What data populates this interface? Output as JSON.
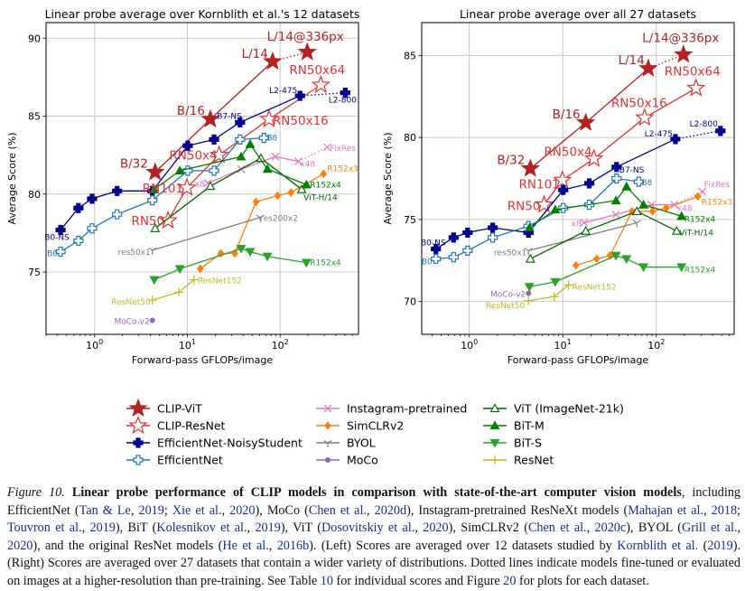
{
  "series_styles": [
    {
      "name": "CLIP-ViT",
      "color": "#b22222",
      "marker": "star",
      "filled": true
    },
    {
      "name": "CLIP-ResNet",
      "color": "#e03434",
      "marker": "star",
      "filled": false
    },
    {
      "name": "EfficientNet-NoisyStudent",
      "color": "#00008b",
      "marker": "plus-thick",
      "filled": true
    },
    {
      "name": "EfficientNet",
      "color": "#1f77b4",
      "marker": "plus-thick",
      "filled": false
    },
    {
      "name": "Instagram-pretrained",
      "color": "#e377c2",
      "marker": "x",
      "filled": false
    },
    {
      "name": "SimCLRv2",
      "color": "#ff7f0e",
      "marker": "diamond",
      "filled": true
    },
    {
      "name": "BYOL",
      "color": "#7f7f7f",
      "marker": "tri-down-lines",
      "filled": false
    },
    {
      "name": "MoCo",
      "color": "#9467bd",
      "marker": "circle",
      "filled": true
    },
    {
      "name": "ViT (ImageNet-21k)",
      "color": "#006400",
      "marker": "triangle-up",
      "filled": false
    },
    {
      "name": "BiT-M",
      "color": "#008000",
      "marker": "triangle-up",
      "filled": true
    },
    {
      "name": "BiT-S",
      "color": "#2ca02c",
      "marker": "triangle-down",
      "filled": true
    },
    {
      "name": "ResNet",
      "color": "#bcbd22",
      "marker": "plus-thin",
      "filled": false
    }
  ],
  "legend": {
    "placement": "bottom-center",
    "columns": 3
  },
  "chart_data": [
    {
      "type": "line",
      "title": "Linear probe average over Kornblith et al.'s 12 datasets",
      "xlabel": "Forward-pass GFLOPs/image",
      "ylabel": "Average Score (%)",
      "xscale": "log",
      "xlim": [
        0.3,
        700
      ],
      "ylim": [
        71,
        91
      ],
      "xticks": [
        1,
        10,
        100
      ],
      "yticks": [
        75,
        80,
        85,
        90
      ],
      "grid": true,
      "series": [
        {
          "name": "CLIP-ViT",
          "x": [
            4.5,
            17.7,
            83,
            196
          ],
          "y": [
            81.4,
            84.8,
            88.5,
            89.1
          ],
          "dotted_last_segment": true
        },
        {
          "name": "CLIP-ResNet",
          "x": [
            6.2,
            9.9,
            22,
            76,
            275
          ],
          "y": [
            78.3,
            80.4,
            82.5,
            84.8,
            87.0
          ]
        },
        {
          "name": "EfficientNet-NoisyStudent",
          "x": [
            0.43,
            0.67,
            0.94,
            1.75,
            4.2,
            10.1,
            19.4,
            37,
            164,
            504
          ],
          "y": [
            77.7,
            79.1,
            79.7,
            80.2,
            80.2,
            83.1,
            83.5,
            84.6,
            86.3,
            86.5
          ],
          "dotted_last_segment": true
        },
        {
          "name": "EfficientNet",
          "x": [
            0.43,
            0.67,
            0.94,
            1.75,
            4.2,
            10.1,
            19.4,
            37,
            67
          ],
          "y": [
            76.3,
            77.0,
            77.8,
            78.7,
            79.6,
            81.5,
            81.5,
            83.5,
            83.6
          ]
        },
        {
          "name": "Instagram-pretrained",
          "x": [
            16.6,
            38,
            89,
            157,
            323
          ],
          "y": [
            80.7,
            81.6,
            82.4,
            82.1,
            83.0
          ],
          "dotted_last_segment": true
        },
        {
          "name": "SimCLRv2",
          "x": [
            13.8,
            23,
            32.5,
            55,
            94,
            131,
            294
          ],
          "y": [
            75.2,
            76.2,
            76.2,
            79.5,
            79.9,
            80.1,
            81.3
          ]
        },
        {
          "name": "BYOL",
          "x": [
            4.2,
            61
          ],
          "y": [
            76.4,
            78.5
          ]
        },
        {
          "name": "MoCo",
          "x": [
            4.2
          ],
          "y": [
            71.9
          ]
        },
        {
          "name": "ViT (ImageNet-21k)",
          "x": [
            4.5,
            17.7,
            62,
            171
          ],
          "y": [
            77.8,
            80.5,
            82.3,
            80.3
          ]
        },
        {
          "name": "BiT-M",
          "x": [
            4.4,
            8.3,
            38,
            47.5,
            73,
            192
          ],
          "y": [
            80.3,
            81.5,
            82.4,
            83.2,
            81.6,
            80.6
          ]
        },
        {
          "name": "BiT-S",
          "x": [
            4.4,
            8.3,
            38,
            47.5,
            73,
            192
          ],
          "y": [
            74.5,
            75.2,
            76.5,
            76.3,
            76.0,
            75.6
          ]
        },
        {
          "name": "ResNet",
          "x": [
            4.2,
            8.1,
            11.8
          ],
          "y": [
            73.2,
            73.7,
            74.5
          ]
        }
      ],
      "labels": [
        {
          "text": "B/32",
          "series": 0,
          "point": 0
        },
        {
          "text": "B/16",
          "series": 0,
          "point": 1
        },
        {
          "text": "L/14",
          "series": 0,
          "point": 2
        },
        {
          "text": "L/14@336px",
          "series": 0,
          "point": 3
        },
        {
          "text": "RN50",
          "series": 1,
          "point": 0
        },
        {
          "text": "RN101",
          "series": 1,
          "point": 1
        },
        {
          "text": "RN50x4",
          "series": 1,
          "point": 2
        },
        {
          "text": "RN50x16",
          "series": 1,
          "point": 3
        },
        {
          "text": "RN50x64",
          "series": 1,
          "point": 4
        },
        {
          "text": "B0-NS",
          "series": 2,
          "point": 0
        },
        {
          "text": "B7-NS",
          "series": 2,
          "point": 7
        },
        {
          "text": "L2-475",
          "series": 2,
          "point": 8
        },
        {
          "text": "L2-800",
          "series": 2,
          "point": 9
        },
        {
          "text": "B0",
          "series": 3,
          "point": 0
        },
        {
          "text": "B8",
          "series": 3,
          "point": 8
        },
        {
          "text": "x8",
          "series": 4,
          "point": 0
        },
        {
          "text": "x48",
          "series": 4,
          "point": 3
        },
        {
          "text": "FixRes",
          "series": 4,
          "point": 4
        },
        {
          "text": "R152x3",
          "series": 5,
          "point": 6
        },
        {
          "text": "res50x1",
          "series": 6,
          "point": 0
        },
        {
          "text": "res200x2",
          "series": 6,
          "point": 1
        },
        {
          "text": "MoCo-v2",
          "series": 7,
          "point": 0
        },
        {
          "text": "ResNet50",
          "series": 11,
          "point": 0
        },
        {
          "text": "ResNet152",
          "series": 11,
          "point": 2
        },
        {
          "text": "ViT-H/14",
          "series": 8,
          "point": 3
        },
        {
          "text": "R152x4",
          "series": 9,
          "point": 5
        },
        {
          "text": "R152x4",
          "series": 10,
          "point": 5
        }
      ]
    },
    {
      "type": "line",
      "title": "Linear probe average over all 27 datasets",
      "xlabel": "Forward-pass GFLOPs/image",
      "ylabel": "Average Score (%)",
      "xscale": "log",
      "xlim": [
        0.31,
        680
      ],
      "ylim": [
        68,
        87
      ],
      "xticks": [
        1,
        10,
        100
      ],
      "yticks": [
        70,
        75,
        80,
        85
      ],
      "grid": true,
      "series": [
        {
          "name": "CLIP-ViT",
          "x": [
            4.5,
            17.6,
            82,
            195
          ],
          "y": [
            78.1,
            80.9,
            84.2,
            85.05
          ],
          "dotted_last_segment": true
        },
        {
          "name": "CLIP-ResNet",
          "x": [
            6.3,
            9.9,
            21.5,
            75,
            266
          ],
          "y": [
            75.9,
            77.4,
            78.7,
            81.2,
            83.0
          ]
        },
        {
          "name": "EfficientNet-NoisyStudent",
          "x": [
            0.44,
            0.68,
            0.96,
            1.78,
            4.3,
            10.1,
            19.2,
            37.6,
            160,
            485
          ],
          "y": [
            73.2,
            73.9,
            74.2,
            74.5,
            74.2,
            76.8,
            77.2,
            78.2,
            79.9,
            80.4
          ],
          "dotted_last_segment": true
        },
        {
          "name": "EfficientNet",
          "x": [
            0.44,
            0.68,
            0.96,
            1.78,
            4.3,
            10.1,
            19.2,
            37.6,
            65
          ],
          "y": [
            72.6,
            72.7,
            73.1,
            73.9,
            74.6,
            75.7,
            75.9,
            77.5,
            77.3
          ]
        },
        {
          "name": "Instagram-pretrained",
          "x": [
            16.9,
            37,
            89,
            156,
            310
          ],
          "y": [
            74.8,
            75.3,
            75.9,
            75.9,
            76.7
          ],
          "dotted_last_segment": true
        },
        {
          "name": "SimCLRv2",
          "x": [
            13.8,
            23,
            32,
            55,
            91,
            128,
            278
          ],
          "y": [
            72.2,
            72.6,
            72.8,
            75.5,
            75.5,
            75.7,
            76.4
          ]
        },
        {
          "name": "BYOL",
          "x": [
            4.3,
            62
          ],
          "y": [
            73.1,
            74.8
          ]
        },
        {
          "name": "MoCo",
          "x": [
            4.3
          ],
          "y": [
            70.5
          ]
        },
        {
          "name": "ViT (ImageNet-21k)",
          "x": [
            4.5,
            17.6,
            62,
            165
          ],
          "y": [
            72.6,
            74.3,
            75.5,
            74.3
          ]
        },
        {
          "name": "BiT-M",
          "x": [
            4.4,
            8.3,
            37,
            48,
            73,
            186
          ],
          "y": [
            74.5,
            75.6,
            76.15,
            77.0,
            75.9,
            75.2
          ]
        },
        {
          "name": "BiT-S",
          "x": [
            4.4,
            8.3,
            37,
            48,
            73,
            186
          ],
          "y": [
            70.9,
            71.2,
            72.8,
            72.6,
            72.1,
            72.1
          ]
        },
        {
          "name": "ResNet",
          "x": [
            4.3,
            8.1,
            11.5
          ],
          "y": [
            70.05,
            70.3,
            71.0
          ]
        }
      ],
      "labels": [
        {
          "text": "B/32",
          "series": 0,
          "point": 0
        },
        {
          "text": "B/16",
          "series": 0,
          "point": 1
        },
        {
          "text": "L/14",
          "series": 0,
          "point": 2
        },
        {
          "text": "L/14@336px",
          "series": 0,
          "point": 3
        },
        {
          "text": "RN50",
          "series": 1,
          "point": 0
        },
        {
          "text": "RN101",
          "series": 1,
          "point": 1
        },
        {
          "text": "RN50x4",
          "series": 1,
          "point": 2
        },
        {
          "text": "RN50x16",
          "series": 1,
          "point": 3
        },
        {
          "text": "RN50x64",
          "series": 1,
          "point": 4
        },
        {
          "text": "B0-NS",
          "series": 2,
          "point": 0
        },
        {
          "text": "B7-NS",
          "series": 2,
          "point": 7
        },
        {
          "text": "L2-475",
          "series": 2,
          "point": 8
        },
        {
          "text": "L2-800",
          "series": 2,
          "point": 9
        },
        {
          "text": "B0",
          "series": 3,
          "point": 0
        },
        {
          "text": "B8",
          "series": 3,
          "point": 8
        },
        {
          "text": "x8",
          "series": 4,
          "point": 0
        },
        {
          "text": "x48",
          "series": 4,
          "point": 3
        },
        {
          "text": "FixRes",
          "series": 4,
          "point": 4
        },
        {
          "text": "R152x3",
          "series": 5,
          "point": 6
        },
        {
          "text": "res50x1",
          "series": 6,
          "point": 0
        },
        {
          "text": "MoCo-v2",
          "series": 7,
          "point": 0
        },
        {
          "text": "ResNet50",
          "series": 11,
          "point": 0
        },
        {
          "text": "ResNet152",
          "series": 11,
          "point": 2
        },
        {
          "text": "ViT-H/14",
          "series": 8,
          "point": 3
        },
        {
          "text": "R152x4",
          "series": 9,
          "point": 5
        },
        {
          "text": "R152x4",
          "series": 10,
          "point": 5
        }
      ]
    }
  ],
  "caption": {
    "segments": [
      {
        "text": "Figure 10. ",
        "style": "italic"
      },
      {
        "text": "Linear probe performance of CLIP models in comparison with state-of-the-art computer vision models",
        "style": "bold"
      },
      {
        "text": ", including EfficientNet (",
        "style": "plain"
      },
      {
        "text": "Tan & Le",
        "style": "link"
      },
      {
        "text": ", ",
        "style": "plain"
      },
      {
        "text": "2019",
        "style": "link"
      },
      {
        "text": "; ",
        "style": "plain"
      },
      {
        "text": "Xie et al.",
        "style": "link"
      },
      {
        "text": ", ",
        "style": "plain"
      },
      {
        "text": "2020",
        "style": "link"
      },
      {
        "text": "), MoCo (",
        "style": "plain"
      },
      {
        "text": "Chen et al.",
        "style": "link"
      },
      {
        "text": ", ",
        "style": "plain"
      },
      {
        "text": "2020d",
        "style": "link"
      },
      {
        "text": "), Instagram-pretrained ResNeXt models (",
        "style": "plain"
      },
      {
        "text": "Mahajan et al.",
        "style": "link"
      },
      {
        "text": ", ",
        "style": "plain"
      },
      {
        "text": "2018",
        "style": "link"
      },
      {
        "text": "; ",
        "style": "plain"
      },
      {
        "text": "Touvron et al.",
        "style": "link"
      },
      {
        "text": ", ",
        "style": "plain"
      },
      {
        "text": "2019",
        "style": "link"
      },
      {
        "text": "), BiT (",
        "style": "plain"
      },
      {
        "text": "Kolesnikov et al.",
        "style": "link"
      },
      {
        "text": ", ",
        "style": "plain"
      },
      {
        "text": "2019",
        "style": "link"
      },
      {
        "text": "), ViT (",
        "style": "plain"
      },
      {
        "text": "Dosovitskiy et al.",
        "style": "link"
      },
      {
        "text": ", ",
        "style": "plain"
      },
      {
        "text": "2020",
        "style": "link"
      },
      {
        "text": "), SimCLRv2 (",
        "style": "plain"
      },
      {
        "text": "Chen et al.",
        "style": "link"
      },
      {
        "text": ", ",
        "style": "plain"
      },
      {
        "text": "2020c",
        "style": "link"
      },
      {
        "text": "), BYOL (",
        "style": "plain"
      },
      {
        "text": "Grill et al.",
        "style": "link"
      },
      {
        "text": ", ",
        "style": "plain"
      },
      {
        "text": "2020",
        "style": "link"
      },
      {
        "text": "), and the original ResNet models (",
        "style": "plain"
      },
      {
        "text": "He et al.",
        "style": "link"
      },
      {
        "text": ", ",
        "style": "plain"
      },
      {
        "text": "2016b",
        "style": "link"
      },
      {
        "text": "). (Left) Scores are averaged over 12 datasets studied by ",
        "style": "plain"
      },
      {
        "text": "Kornblith et al.",
        "style": "link"
      },
      {
        "text": " (",
        "style": "plain"
      },
      {
        "text": "2019",
        "style": "link"
      },
      {
        "text": "). (Right) Scores are averaged over 27 datasets that contain a wider variety of distributions.  Dotted lines indicate models fine-tuned or evaluated on images at a higher-resolution than pre-training. See Table ",
        "style": "plain"
      },
      {
        "text": "10",
        "style": "link"
      },
      {
        "text": " for individual scores and Figure ",
        "style": "plain"
      },
      {
        "text": "20",
        "style": "link"
      },
      {
        "text": " for plots for each dataset.",
        "style": "plain"
      }
    ]
  }
}
